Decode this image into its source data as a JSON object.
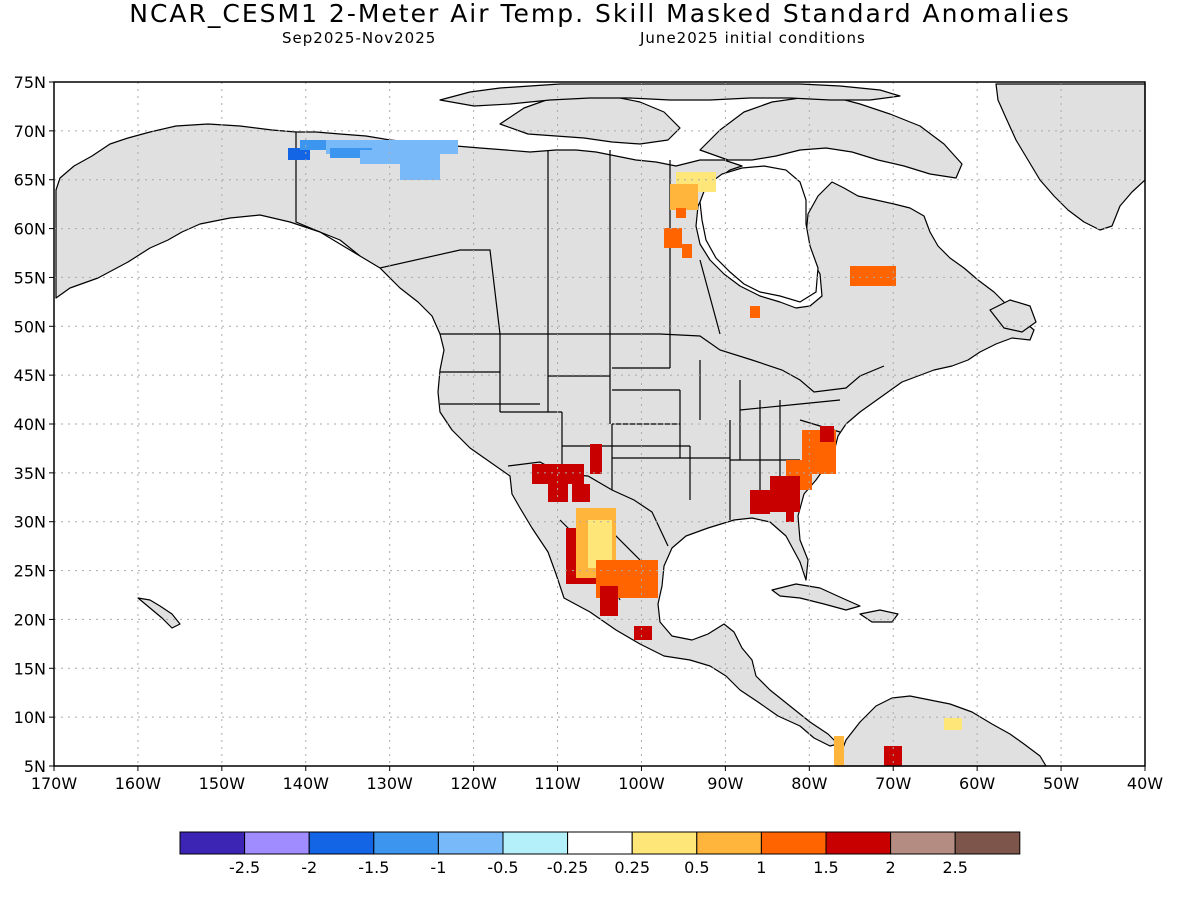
{
  "header": {
    "title": "NCAR_CESM1 2-Meter Air Temp. Skill Masked Standard Anomalies",
    "period": "Sep2025-Nov2025",
    "init": "June2025 initial conditions"
  },
  "map": {
    "lon_range": [
      -170,
      -40
    ],
    "lat_range": [
      5,
      75
    ],
    "lat_ticks": [
      "75N",
      "70N",
      "65N",
      "60N",
      "55N",
      "50N",
      "45N",
      "40N",
      "35N",
      "30N",
      "25N",
      "20N",
      "15N",
      "10N",
      "5N"
    ],
    "lon_ticks": [
      "170W",
      "160W",
      "150W",
      "140W",
      "130W",
      "120W",
      "110W",
      "100W",
      "90W",
      "80W",
      "70W",
      "60W",
      "50W",
      "40W"
    ],
    "colors": {
      "land_masked": "#e0e0e0",
      "border": "#000000",
      "grid": "#aaaaaa"
    }
  },
  "legend": {
    "colors": [
      "#3c24b4",
      "#a08cff",
      "#1464e6",
      "#3c96f0",
      "#78b9fa",
      "#b4f0fa",
      "#ffffff",
      "#ffe678",
      "#ffb43c",
      "#ff6400",
      "#c80000",
      "#b48c82",
      "#7d554b"
    ],
    "labels": [
      "-2.5",
      "-2",
      "-1.5",
      "-1",
      "-0.5",
      "-0.25",
      "0.25",
      "0.5",
      "1",
      "1.5",
      "2",
      "2.5"
    ]
  }
}
